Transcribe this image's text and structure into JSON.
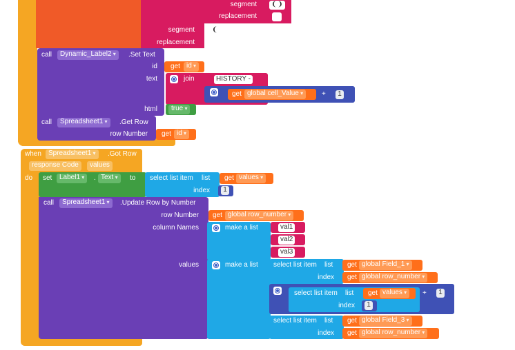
{
  "top_fragment": {
    "segment_label_1": "segment",
    "segment_value_1": "❨❩",
    "replacement_label_1": "replacement",
    "segment_label_2": "segment",
    "segment_value_2": "❨",
    "replacement_label_2": "replacement"
  },
  "set_text_block": {
    "call": "call",
    "component": "Dynamic_Label2",
    "method": ".Set Text",
    "id_label": "id",
    "get": "get",
    "id_var": "id",
    "text_label": "text",
    "join": "join",
    "history_string": "HISTORY -",
    "global_var": "global cell_Value",
    "plus": "+",
    "one": "1",
    "html_label": "html",
    "true_value": "true"
  },
  "get_row_block": {
    "call": "call",
    "component": "Spreadsheet1",
    "method": ".Get Row",
    "row_number_label": "row Number",
    "get": "get",
    "id_var": "id"
  },
  "event_block": {
    "when": "when",
    "component": "Spreadsheet1",
    "event": ".Got Row",
    "param_1": "response Code",
    "param_2": "values",
    "do": "do",
    "set": "set",
    "set_component": "Label1",
    "set_property": "Text",
    "to": "to",
    "select_list_item": "select list item",
    "list": "list",
    "get": "get",
    "values_var": "values",
    "index": "index",
    "index_value": "1"
  },
  "update_block": {
    "call": "call",
    "component": "Spreadsheet1",
    "method": ".Update Row by Number",
    "row_number_label": "row Number",
    "get": "get",
    "row_number_var": "global row_number",
    "column_names_label": "column Names",
    "make_a_list": "make a list",
    "val1": "val1",
    "val2": "val2",
    "val3": "val3",
    "values_label": "values",
    "select_list_item": "select list item",
    "list": "list",
    "field1": "global Field_1",
    "index": "index",
    "values_var": "values",
    "plus": "+",
    "one": "1",
    "field3": "global Field_3"
  },
  "colors": {
    "orange_frame": "#f5a623",
    "red_block": "#f05a28",
    "purple_call": "#6a3fb5",
    "magenta_text": "#d81b60",
    "green_set": "#3f9e42",
    "blue_list": "#1fa8e6",
    "indigo_math": "#3f51b5",
    "orange_get": "#ff6f1a"
  }
}
